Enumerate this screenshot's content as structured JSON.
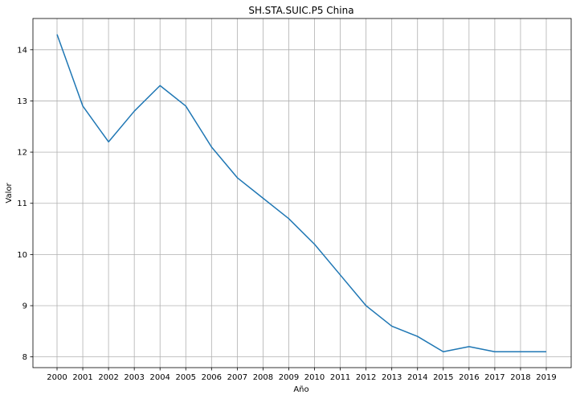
{
  "chart_data": {
    "type": "line",
    "title": "SH.STA.SUIC.P5 China",
    "xlabel": "Año",
    "ylabel": "Valor",
    "x": [
      "2000",
      "2001",
      "2002",
      "2003",
      "2004",
      "2005",
      "2006",
      "2007",
      "2008",
      "2009",
      "2010",
      "2011",
      "2012",
      "2013",
      "2014",
      "2015",
      "2016",
      "2017",
      "2018",
      "2019"
    ],
    "series": [
      {
        "values": [
          14.3,
          12.9,
          12.2,
          12.8,
          13.3,
          12.9,
          12.1,
          11.5,
          11.1,
          10.7,
          10.2,
          9.6,
          9.0,
          8.6,
          8.4,
          8.1,
          8.2,
          8.1,
          8.1,
          8.1
        ],
        "color": "#1f77b4"
      }
    ],
    "yticks": [
      8,
      9,
      10,
      11,
      12,
      13,
      14
    ],
    "ylim": [
      7.79,
      14.61
    ],
    "grid": true,
    "legend": "none"
  }
}
